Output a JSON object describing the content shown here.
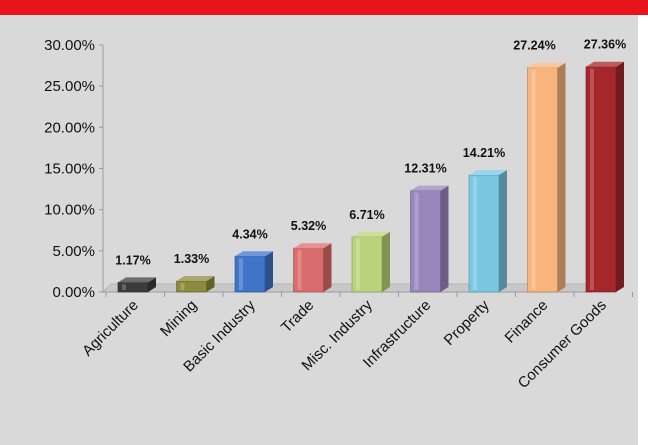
{
  "chart_data": {
    "type": "bar",
    "categories": [
      "Agriculture",
      "Mining",
      "Basic Industry",
      "Trade",
      "Misc. Industry",
      "Infrastructure",
      "Property",
      "Finance",
      "Consumer Goods"
    ],
    "values": [
      1.17,
      1.33,
      4.34,
      5.32,
      6.71,
      12.31,
      14.21,
      27.24,
      27.36
    ],
    "labels": [
      "1.17%",
      "1.33%",
      "4.34%",
      "5.32%",
      "6.71%",
      "12.31%",
      "14.21%",
      "27.24%",
      "27.36%"
    ],
    "yticks": [
      "0.00%",
      "5.00%",
      "10.00%",
      "15.00%",
      "20.00%",
      "25.00%",
      "30.00%"
    ],
    "ylim": [
      0,
      30
    ],
    "colors": [
      "#3b3b3b",
      "#8c8a3c",
      "#3f74c9",
      "#d96c6c",
      "#b9d37a",
      "#9a86bd",
      "#79c7e3",
      "#f7b47c",
      "#a5262b"
    ],
    "grid": false,
    "legend": "none"
  }
}
